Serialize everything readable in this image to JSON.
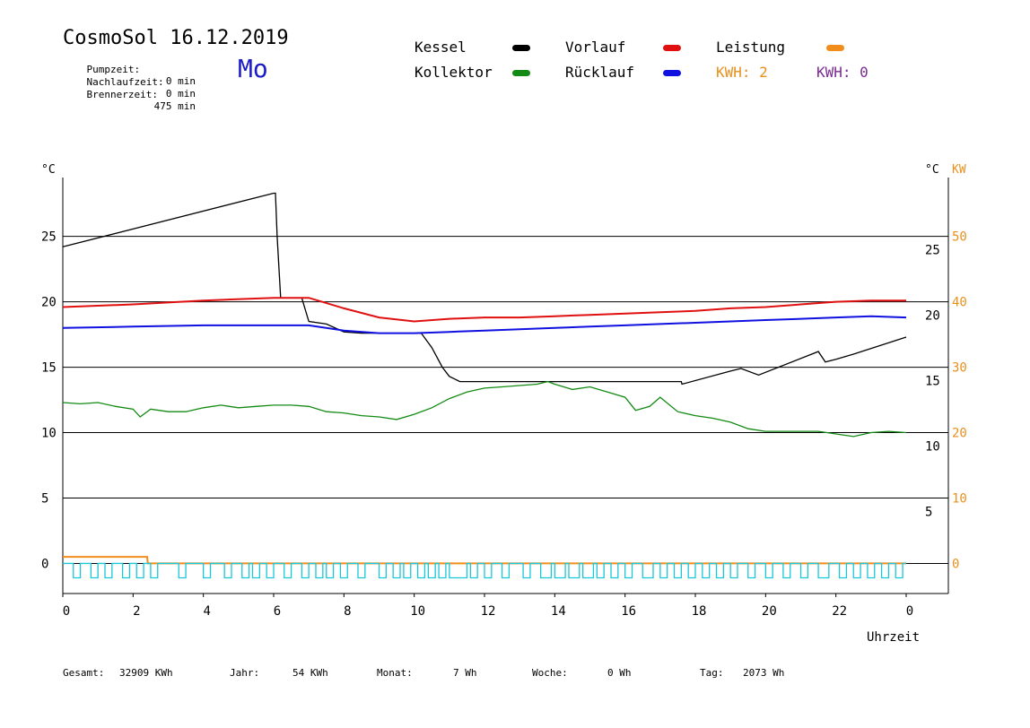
{
  "header": {
    "title": "CosmoSol 16.12.2019",
    "weekday": "Mo",
    "stats": [
      {
        "label": "Pumpzeit:",
        "value": "0 min"
      },
      {
        "label": "Nachlaufzeit:",
        "value": "0 min"
      },
      {
        "label": "Brennerzeit:",
        "value": "475 min"
      }
    ]
  },
  "legend": {
    "kessel": {
      "label": "Kessel",
      "color": "#000000"
    },
    "kollektor": {
      "label": "Kollektor",
      "color": "#138a13"
    },
    "vorlauf": {
      "label": "Vorlauf",
      "color": "#e01010"
    },
    "ruecklauf": {
      "label": "Rücklauf",
      "color": "#1010e0"
    },
    "leistung": {
      "label": "Leistung",
      "color": "#f28c1a"
    },
    "kwh_orange": {
      "text": "KWH: 2",
      "color": "#e8901e"
    },
    "kwh_purple": {
      "text": "KWH: 0",
      "color": "#7b2a94"
    }
  },
  "footer": {
    "gesamt": {
      "label": "Gesamt:",
      "value": "32909 KWh"
    },
    "jahr": {
      "label": "Jahr:",
      "value": "54 KWh"
    },
    "monat": {
      "label": "Monat:",
      "value": "7 Wh"
    },
    "woche": {
      "label": "Woche:",
      "value": "0 Wh"
    },
    "tag": {
      "label": "Tag:",
      "value": "2073 Wh"
    }
  },
  "chart_data": {
    "type": "line",
    "x_label": "Uhrzeit",
    "xlim": [
      0,
      24
    ],
    "x_ticks": [
      "0",
      "2",
      "4",
      "6",
      "8",
      "10",
      "12",
      "14",
      "16",
      "18",
      "20",
      "22",
      "0"
    ],
    "y_left_label": "°C",
    "y_left_ticks": [
      "0",
      "5",
      "10",
      "15",
      "20",
      "25"
    ],
    "y_left_lim": [
      -2.3,
      29.5
    ],
    "y_right_c_label": "°C",
    "y_right_c_ticks": [
      "5",
      "10",
      "15",
      "20",
      "25"
    ],
    "y_right_kw_label": "KW",
    "y_right_kw_ticks": [
      "0",
      "10",
      "20",
      "30",
      "40",
      "50"
    ],
    "gridlines": [
      5,
      10,
      15,
      20,
      25
    ],
    "series": [
      {
        "name": "Kessel",
        "color": "#000000",
        "x": [
          0,
          6.0,
          6.05,
          6.1,
          6.2,
          6.8,
          7.0,
          7.5,
          8.0,
          8.5,
          9.0,
          9.5,
          10.2,
          10.5,
          10.8,
          11.0,
          11.3,
          12.0,
          15.0,
          17.6,
          17.62,
          19.0,
          19.3,
          19.8,
          21.5,
          21.7,
          22.0,
          22.5,
          24.0
        ],
        "y": [
          24.2,
          28.3,
          28.3,
          25.0,
          20.3,
          20.3,
          18.5,
          18.3,
          17.7,
          17.6,
          17.6,
          17.6,
          17.6,
          16.5,
          15.0,
          14.3,
          13.9,
          13.9,
          13.9,
          13.9,
          13.7,
          14.7,
          14.9,
          14.4,
          16.2,
          15.4,
          15.6,
          16.0,
          17.3
        ]
      },
      {
        "name": "Kollektor",
        "color": "#138a13",
        "x": [
          0,
          0.5,
          1.0,
          1.5,
          2.0,
          2.2,
          2.5,
          3.0,
          3.5,
          4.0,
          4.5,
          5.0,
          5.5,
          6.0,
          6.5,
          7.0,
          7.5,
          8.0,
          8.5,
          9.0,
          9.5,
          10.0,
          10.5,
          11.0,
          11.5,
          12.0,
          12.5,
          13.0,
          13.5,
          13.8,
          14.0,
          14.5,
          15.0,
          15.5,
          16.0,
          16.3,
          16.7,
          17.0,
          17.5,
          18.0,
          18.5,
          19.0,
          19.5,
          20.0,
          20.5,
          21.0,
          21.5,
          22.0,
          22.5,
          23.0,
          23.5,
          24.0
        ],
        "y": [
          12.3,
          12.2,
          12.3,
          12.0,
          11.8,
          11.2,
          11.8,
          11.6,
          11.6,
          11.9,
          12.1,
          11.9,
          12.0,
          12.1,
          12.1,
          12.0,
          11.6,
          11.5,
          11.3,
          11.2,
          11.0,
          11.4,
          11.9,
          12.6,
          13.1,
          13.4,
          13.5,
          13.6,
          13.7,
          13.9,
          13.7,
          13.3,
          13.5,
          13.1,
          12.7,
          11.7,
          12.0,
          12.7,
          11.6,
          11.3,
          11.1,
          10.8,
          10.3,
          10.1,
          10.1,
          10.1,
          10.1,
          9.9,
          9.7,
          10.0,
          10.1,
          10.0
        ]
      },
      {
        "name": "Vorlauf",
        "color": "#e01010",
        "x": [
          0,
          2.0,
          4.0,
          6.0,
          7.0,
          8.0,
          9.0,
          10.0,
          11.0,
          12.0,
          13.0,
          14.0,
          15.0,
          16.0,
          17.0,
          18.0,
          19.0,
          20.0,
          21.0,
          22.0,
          23.0,
          24.0
        ],
        "y": [
          19.6,
          19.8,
          20.1,
          20.3,
          20.3,
          19.5,
          18.8,
          18.5,
          18.7,
          18.8,
          18.8,
          18.9,
          19.0,
          19.1,
          19.2,
          19.3,
          19.5,
          19.6,
          19.8,
          20.0,
          20.1,
          20.1
        ]
      },
      {
        "name": "Rücklauf",
        "color": "#1010e0",
        "x": [
          0,
          2.0,
          4.0,
          6.0,
          7.0,
          8.0,
          9.0,
          10.0,
          11.0,
          12.0,
          13.0,
          14.0,
          15.0,
          16.0,
          17.0,
          18.0,
          19.0,
          20.0,
          21.0,
          22.0,
          23.0,
          24.0
        ],
        "y": [
          18.0,
          18.1,
          18.2,
          18.2,
          18.2,
          17.8,
          17.6,
          17.6,
          17.7,
          17.8,
          17.9,
          18.0,
          18.1,
          18.2,
          18.3,
          18.4,
          18.5,
          18.6,
          18.7,
          18.8,
          18.9,
          18.8
        ]
      },
      {
        "name": "Leistung",
        "color": "#f28c1a",
        "axis": "kw",
        "x": [
          0,
          2.4,
          2.42,
          24.0
        ],
        "y": [
          1.0,
          1.0,
          0,
          0
        ]
      },
      {
        "name": "Pumpe",
        "color": "#19c8d8",
        "type": "pulses",
        "base": 0,
        "starts": [
          0.3,
          0.8,
          1.2,
          1.7,
          2.1,
          2.5,
          3.3,
          4.0,
          4.6,
          5.1,
          5.4,
          5.8,
          6.3,
          6.8,
          7.2,
          7.5,
          7.9,
          8.4,
          9.0,
          9.4,
          9.7,
          10.1,
          10.4,
          10.7,
          11.0,
          11.6,
          12.0,
          12.5,
          13.1,
          13.6,
          14.0,
          14.4,
          14.8,
          15.2,
          15.6,
          16.0,
          16.5,
          17.0,
          17.4,
          17.8,
          18.2,
          18.6,
          19.0,
          19.5,
          20.0,
          20.5,
          21.0,
          21.5,
          22.1,
          22.5,
          22.9,
          23.3,
          23.7
        ],
        "ends": [
          0.5,
          1.0,
          1.4,
          1.9,
          2.3,
          2.7,
          3.5,
          4.2,
          4.8,
          5.3,
          5.6,
          6.0,
          6.5,
          7.0,
          7.4,
          7.7,
          8.1,
          8.6,
          9.2,
          9.6,
          9.9,
          10.3,
          10.6,
          10.9,
          11.5,
          11.8,
          12.2,
          12.7,
          13.3,
          13.9,
          14.3,
          14.7,
          15.1,
          15.4,
          15.8,
          16.2,
          16.8,
          17.2,
          17.6,
          18.0,
          18.4,
          18.8,
          19.2,
          19.7,
          20.2,
          20.7,
          21.2,
          21.8,
          22.3,
          22.7,
          23.1,
          23.5,
          23.9
        ],
        "depth": -1.1
      }
    ]
  }
}
